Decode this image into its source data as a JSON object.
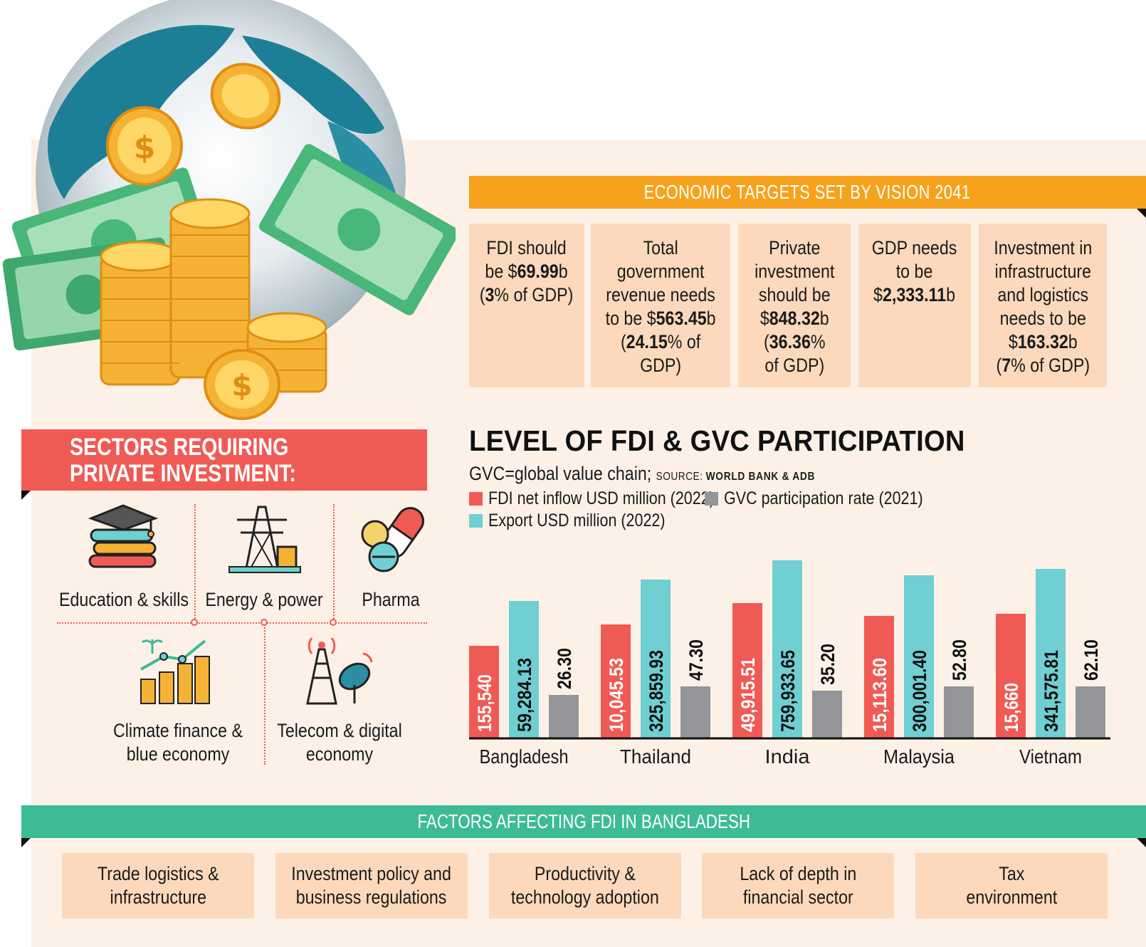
{
  "targets": {
    "header": "ECONOMIC TARGETS SET BY VISION 2041",
    "boxes": [
      {
        "pre": "FDI should\nbe $",
        "value": "69.99",
        "post": "b\n(",
        "pct": "3",
        "tail": "% of GDP)"
      },
      {
        "pre": "Total\ngovernment\nrevenue needs\nto be $",
        "value": "563.45",
        "post": "b\n(",
        "pct": "24.15",
        "tail": "% of\nGDP)"
      },
      {
        "pre": "Private\ninvestment\nshould be\n$",
        "value": "848.32",
        "post": "b\n(",
        "pct": "36.36",
        "tail": "%\nof GDP)"
      },
      {
        "pre": "GDP needs\nto be\n$",
        "value": "2,333.11",
        "post": "b",
        "pct": "",
        "tail": ""
      },
      {
        "pre": "Investment in\ninfrastructure\nand logistics\nneeds to be\n$",
        "value": "163.32",
        "post": "b\n(",
        "pct": "7",
        "tail": "% of GDP)"
      }
    ]
  },
  "sectors": {
    "header": "SECTORS REQUIRING PRIVATE INVESTMENT:",
    "items": [
      {
        "label": "Education & skills",
        "icon": "books-graduation-cap-icon"
      },
      {
        "label": "Energy & power",
        "icon": "power-pylon-icon"
      },
      {
        "label": "Pharma",
        "icon": "pills-capsule-icon"
      },
      {
        "label": "Climate finance &\nblue economy",
        "icon": "growth-coins-plant-icon"
      },
      {
        "label": "Telecom & digital\neconomy",
        "icon": "telecom-tower-dish-icon"
      }
    ]
  },
  "chart": {
    "title": "LEVEL OF FDI & GVC PARTICIPATION",
    "subtitle": "GVC=global value chain; ",
    "source_label": "SOURCE: ",
    "source": "WORLD BANK & ADB",
    "legend": [
      {
        "name": "FDI net inflow USD million (2022)",
        "color": "#ef5b54"
      },
      {
        "name": "GVC participation rate (2021)",
        "color": "#939598"
      },
      {
        "name": "Export USD million (2022)",
        "color": "#6fcfd2"
      }
    ]
  },
  "chart_data": {
    "type": "bar",
    "title": "LEVEL OF FDI & GVC PARTICIPATION",
    "categories": [
      "Bangladesh",
      "Thailand",
      "India",
      "Malaysia",
      "Vietnam"
    ],
    "series": [
      {
        "name": "FDI net inflow USD million (2022)",
        "color": "#ef5b54",
        "values": [
          155540,
          10045.53,
          49915.51,
          15113.6,
          15660
        ],
        "labels": [
          "155,540",
          "10,045.53",
          "49,915.51",
          "15,113.60",
          "15,660"
        ],
        "bar_level": [
          0.43,
          0.53,
          0.63,
          0.57,
          0.58
        ]
      },
      {
        "name": "Export USD million (2022)",
        "color": "#6fcfd2",
        "values": [
          59284.13,
          325859.93,
          759933.65,
          300001.4,
          341575.81
        ],
        "labels": [
          "59,284.13",
          "325,859.93",
          "759,933.65",
          "300,001.40",
          "341,575.81"
        ],
        "bar_level": [
          0.64,
          0.74,
          0.83,
          0.76,
          0.79
        ]
      },
      {
        "name": "GVC participation rate (2021)",
        "color": "#939598",
        "values": [
          26.3,
          47.3,
          35.2,
          52.8,
          62.1
        ],
        "labels": [
          "26.30",
          "47.30",
          "35.20",
          "52.80",
          "62.10"
        ],
        "bar_level": [
          0.2,
          0.24,
          0.22,
          0.24,
          0.24
        ]
      }
    ],
    "grid": false,
    "legend_position": "top-left"
  },
  "factors": {
    "header": "FACTORS AFFECTING FDI IN BANGLADESH",
    "items": [
      "Trade logistics &\ninfrastructure",
      "Investment policy and\nbusiness regulations",
      "Productivity &\ntechnology adoption",
      "Lack of depth in\nfinancial sector",
      "Tax\nenvironment"
    ]
  }
}
